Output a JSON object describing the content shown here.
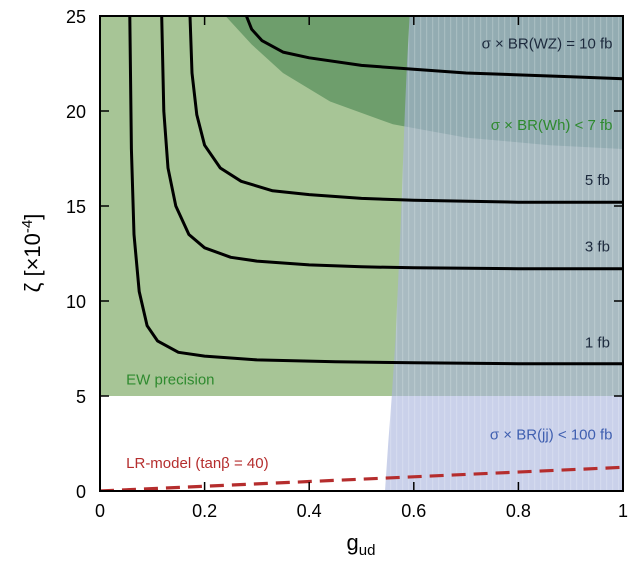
{
  "chart_data": {
    "type": "line",
    "title": "",
    "xlabel": "g",
    "xlabel_sub": "ud",
    "ylabel": "ζ  [×10",
    "ylabel_sup": "-4",
    "ylabel_close": "]",
    "xlim": [
      0,
      1
    ],
    "ylim": [
      0,
      25
    ],
    "x_ticks": [
      {
        "value": 0,
        "label": "0"
      },
      {
        "value": 0.2,
        "label": "0.2"
      },
      {
        "value": 0.4,
        "label": "0.4"
      },
      {
        "value": 0.6,
        "label": "0.6"
      },
      {
        "value": 0.8,
        "label": "0.8"
      },
      {
        "value": 1,
        "label": "1"
      }
    ],
    "y_ticks": [
      {
        "value": 0,
        "label": "0"
      },
      {
        "value": 5,
        "label": "5"
      },
      {
        "value": 10,
        "label": "10"
      },
      {
        "value": 15,
        "label": "15"
      },
      {
        "value": 20,
        "label": "20"
      },
      {
        "value": 25,
        "label": "25"
      }
    ],
    "grid": false,
    "regions": [
      {
        "label": "EW precision",
        "color": "#a7c596",
        "label_color": "#2e8a2e",
        "polygon": [
          [
            0,
            5
          ],
          [
            1,
            5
          ],
          [
            1,
            25
          ],
          [
            0,
            25
          ]
        ]
      },
      {
        "label": "σ × BR(Wh) < 7 fb",
        "color": "#6e9e6c",
        "label_color": "#2e8a2e",
        "polygon": [
          [
            0.24,
            25
          ],
          [
            1,
            25
          ],
          [
            1,
            18.0
          ],
          [
            0.86,
            18.2
          ],
          [
            0.7,
            18.6
          ],
          [
            0.56,
            19.3
          ],
          [
            0.44,
            20.5
          ],
          [
            0.35,
            22.0
          ],
          [
            0.29,
            23.5
          ],
          [
            0.24,
            25
          ]
        ]
      },
      {
        "label": "σ × BR(jj) < 100 fb",
        "color": "#aab4dd",
        "label_color": "#3f5fb0",
        "polygon": [
          [
            0.545,
            0
          ],
          [
            1,
            0
          ],
          [
            1,
            25
          ],
          [
            0.592,
            25
          ],
          [
            0.587,
            22.5
          ],
          [
            0.583,
            20
          ],
          [
            0.579,
            17
          ],
          [
            0.575,
            14
          ],
          [
            0.57,
            11
          ],
          [
            0.565,
            8
          ],
          [
            0.558,
            5
          ],
          [
            0.551,
            2.5
          ],
          [
            0.545,
            0
          ]
        ]
      }
    ],
    "series": [
      {
        "name": "1 fb",
        "color": "#000000",
        "points": [
          [
            0.057,
            25
          ],
          [
            0.06,
            18
          ],
          [
            0.065,
            13.5
          ],
          [
            0.075,
            10.5
          ],
          [
            0.09,
            8.7
          ],
          [
            0.11,
            7.9
          ],
          [
            0.15,
            7.3
          ],
          [
            0.2,
            7.1
          ],
          [
            0.3,
            6.9
          ],
          [
            0.45,
            6.8
          ],
          [
            0.6,
            6.75
          ],
          [
            0.8,
            6.7
          ],
          [
            1,
            6.7
          ]
        ]
      },
      {
        "name": "3 fb",
        "color": "#000000",
        "points": [
          [
            0.118,
            25
          ],
          [
            0.122,
            20
          ],
          [
            0.13,
            17
          ],
          [
            0.145,
            15
          ],
          [
            0.17,
            13.5
          ],
          [
            0.2,
            12.8
          ],
          [
            0.25,
            12.3
          ],
          [
            0.3,
            12.1
          ],
          [
            0.4,
            11.9
          ],
          [
            0.5,
            11.8
          ],
          [
            0.6,
            11.75
          ],
          [
            0.8,
            11.7
          ],
          [
            1,
            11.7
          ]
        ]
      },
      {
        "name": "5 fb",
        "color": "#000000",
        "points": [
          [
            0.172,
            25
          ],
          [
            0.176,
            22
          ],
          [
            0.185,
            19.8
          ],
          [
            0.2,
            18.2
          ],
          [
            0.23,
            17
          ],
          [
            0.27,
            16.3
          ],
          [
            0.33,
            15.8
          ],
          [
            0.4,
            15.6
          ],
          [
            0.5,
            15.4
          ],
          [
            0.6,
            15.3
          ],
          [
            0.8,
            15.2
          ],
          [
            1,
            15.2
          ]
        ]
      },
      {
        "name": "σ × BR(WZ) = 10 fb",
        "color": "#000000",
        "points": [
          [
            0.28,
            25
          ],
          [
            0.29,
            24.3
          ],
          [
            0.31,
            23.7
          ],
          [
            0.35,
            23.1
          ],
          [
            0.4,
            22.8
          ],
          [
            0.5,
            22.4
          ],
          [
            0.6,
            22.2
          ],
          [
            0.7,
            22.0
          ],
          [
            0.8,
            21.9
          ],
          [
            0.9,
            21.8
          ],
          [
            1,
            21.7
          ]
        ]
      },
      {
        "name": "LR-model (tanβ = 40)",
        "color": "#b52d2d",
        "dashed": true,
        "label_color": "#b52d2d",
        "points": [
          [
            0,
            0
          ],
          [
            1,
            1.25
          ]
        ]
      }
    ],
    "annotations": [
      {
        "text": "σ × BR(WZ) = 10 fb",
        "x": 0.98,
        "y": 23.3,
        "anchor": "end",
        "color": "#1d2a3d"
      },
      {
        "text": "σ × BR(Wh) < 7 fb",
        "x": 0.98,
        "y": 19.0,
        "anchor": "end",
        "color": "#2e8a2e"
      },
      {
        "text": "5 fb",
        "x": 0.975,
        "y": 16.1,
        "anchor": "end",
        "color": "#1d2a3d"
      },
      {
        "text": "3 fb",
        "x": 0.975,
        "y": 12.6,
        "anchor": "end",
        "color": "#1d2a3d"
      },
      {
        "text": "1 fb",
        "x": 0.975,
        "y": 7.55,
        "anchor": "end",
        "color": "#1d2a3d"
      },
      {
        "text": "EW precision",
        "x": 0.05,
        "y": 5.6,
        "anchor": "start",
        "color": "#2e8a2e"
      },
      {
        "text": "σ × BR(jj) < 100 fb",
        "x": 0.98,
        "y": 2.7,
        "anchor": "end",
        "color": "#3f5fb0"
      },
      {
        "text": "LR-model (tanβ = 40)",
        "x": 0.05,
        "y": 1.2,
        "anchor": "start",
        "color": "#b52d2d"
      }
    ]
  }
}
